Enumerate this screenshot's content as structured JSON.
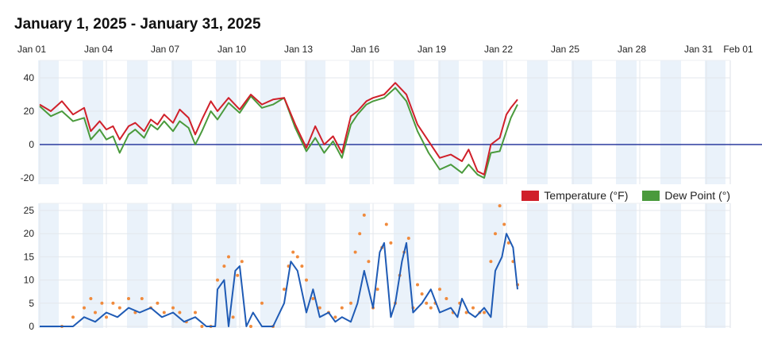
{
  "title": "January 1, 2025 - January 31, 2025",
  "x_ticks": [
    "Jan 01",
    "Jan 04",
    "Jan 07",
    "Jan 10",
    "Jan 13",
    "Jan 16",
    "Jan 19",
    "Jan 22",
    "Jan 25",
    "Jan 28",
    "Jan 31",
    "Feb 01"
  ],
  "colors": {
    "temperature": "#d0202a",
    "dew_point": "#4a9a3c",
    "zero_line": "#2b3a9e",
    "wind": "#1f5bb5",
    "gust": "#f08a3c",
    "band": "#eaf2fa"
  },
  "legend": [
    {
      "label": "Temperature (°F)",
      "color": "#d0202a"
    },
    {
      "label": "Dew Point (°)",
      "color": "#4a9a3c"
    }
  ],
  "chart_data": [
    {
      "type": "line",
      "x_range": [
        "Jan 01",
        "Feb 01"
      ],
      "ylim": [
        -23,
        50
      ],
      "y_ticks": [
        40,
        20,
        0,
        -20
      ],
      "reference_line": 0,
      "series": [
        {
          "name": "Temperature (°F)",
          "x": [
            1.0,
            1.5,
            2.0,
            2.5,
            3.0,
            3.3,
            3.7,
            4.0,
            4.3,
            4.6,
            5.0,
            5.3,
            5.7,
            6.0,
            6.3,
            6.6,
            7.0,
            7.3,
            7.7,
            8.0,
            8.3,
            8.7,
            9.0,
            9.5,
            10.0,
            10.5,
            11.0,
            11.5,
            12.0,
            12.5,
            13.0,
            13.4,
            13.8,
            14.2,
            14.6,
            15.0,
            15.3,
            15.7,
            16.0,
            16.5,
            17.0,
            17.5,
            18.0,
            18.5,
            19.0,
            19.5,
            20.0,
            20.3,
            20.7,
            21.0,
            21.3,
            21.7,
            22.0,
            22.2,
            22.5
          ],
          "values": [
            24,
            20,
            26,
            18,
            22,
            8,
            14,
            9,
            11,
            3,
            11,
            13,
            8,
            15,
            12,
            18,
            13,
            21,
            16,
            6,
            15,
            26,
            20,
            28,
            21,
            30,
            24,
            27,
            28,
            12,
            -2,
            11,
            0,
            5,
            -5,
            17,
            20,
            26,
            28,
            30,
            37,
            30,
            12,
            2,
            -8,
            -6,
            -10,
            -3,
            -16,
            -18,
            0,
            4,
            18,
            22,
            27
          ]
        },
        {
          "name": "Dew Point (°)",
          "x": [
            1.0,
            1.5,
            2.0,
            2.5,
            3.0,
            3.3,
            3.7,
            4.0,
            4.3,
            4.6,
            5.0,
            5.3,
            5.7,
            6.0,
            6.3,
            6.6,
            7.0,
            7.3,
            7.7,
            8.0,
            8.3,
            8.7,
            9.0,
            9.5,
            10.0,
            10.5,
            11.0,
            11.5,
            12.0,
            12.5,
            13.0,
            13.4,
            13.8,
            14.2,
            14.6,
            15.0,
            15.3,
            15.7,
            16.0,
            16.5,
            17.0,
            17.5,
            18.0,
            18.5,
            19.0,
            19.5,
            20.0,
            20.3,
            20.7,
            21.0,
            21.3,
            21.7,
            22.0,
            22.2,
            22.5
          ],
          "values": [
            23,
            17,
            20,
            14,
            16,
            3,
            9,
            3,
            5,
            -5,
            6,
            9,
            4,
            12,
            9,
            14,
            8,
            14,
            10,
            0,
            8,
            20,
            15,
            25,
            19,
            29,
            22,
            24,
            28,
            10,
            -4,
            4,
            -5,
            2,
            -8,
            12,
            18,
            24,
            26,
            28,
            34,
            26,
            8,
            -5,
            -15,
            -12,
            -17,
            -12,
            -18,
            -20,
            -5,
            -4,
            8,
            16,
            24
          ]
        }
      ]
    },
    {
      "type": "line",
      "x_range": [
        "Jan 01",
        "Feb 01"
      ],
      "ylim": [
        0,
        26
      ],
      "y_ticks": [
        25,
        20,
        15,
        10,
        5,
        0
      ],
      "series": [
        {
          "name": "",
          "style": "line",
          "x": [
            1.0,
            2.0,
            2.5,
            3.0,
            3.5,
            4.0,
            4.5,
            5.0,
            5.5,
            6.0,
            6.5,
            7.0,
            7.5,
            8.0,
            8.5,
            8.9,
            9.0,
            9.3,
            9.5,
            9.8,
            10.0,
            10.3,
            10.6,
            11.0,
            11.5,
            12.0,
            12.3,
            12.6,
            13.0,
            13.3,
            13.6,
            14.0,
            14.3,
            14.6,
            15.0,
            15.3,
            15.6,
            16.0,
            16.3,
            16.5,
            16.8,
            17.0,
            17.3,
            17.5,
            17.8,
            18.2,
            18.6,
            19.0,
            19.5,
            19.8,
            20.0,
            20.3,
            20.6,
            21.0,
            21.3,
            21.5,
            21.8,
            22.0,
            22.3,
            22.5
          ],
          "values": [
            0,
            0,
            0,
            2,
            1,
            3,
            2,
            4,
            3,
            4,
            2,
            3,
            1,
            2,
            0,
            0,
            8,
            10,
            0,
            12,
            13,
            0,
            3,
            0,
            0,
            5,
            14,
            12,
            3,
            8,
            2,
            3,
            1,
            2,
            1,
            5,
            12,
            4,
            16,
            18,
            2,
            5,
            14,
            18,
            3,
            5,
            8,
            3,
            4,
            2,
            6,
            3,
            2,
            4,
            2,
            12,
            15,
            20,
            17,
            8
          ]
        },
        {
          "name": "",
          "style": "dots",
          "x": [
            2.0,
            2.5,
            3.0,
            3.3,
            3.5,
            3.8,
            4.0,
            4.3,
            4.6,
            5.0,
            5.3,
            5.6,
            6.0,
            6.3,
            6.6,
            7.0,
            7.3,
            7.6,
            8.0,
            8.3,
            8.7,
            9.0,
            9.3,
            9.5,
            9.7,
            9.9,
            10.1,
            10.5,
            11.0,
            11.5,
            12.0,
            12.2,
            12.4,
            12.6,
            12.8,
            13.0,
            13.3,
            13.6,
            14.0,
            14.3,
            14.6,
            15.0,
            15.2,
            15.4,
            15.6,
            15.8,
            16.0,
            16.2,
            16.4,
            16.6,
            16.8,
            17.0,
            17.2,
            17.4,
            17.6,
            17.8,
            18.0,
            18.2,
            18.4,
            18.6,
            18.8,
            19.0,
            19.3,
            19.6,
            19.9,
            20.2,
            20.5,
            20.8,
            21.0,
            21.3,
            21.5,
            21.7,
            21.9,
            22.1,
            22.3,
            22.5
          ],
          "values": [
            0,
            2,
            4,
            6,
            3,
            5,
            2,
            5,
            4,
            6,
            3,
            6,
            4,
            5,
            3,
            4,
            3,
            1,
            3,
            0,
            0,
            10,
            13,
            15,
            2,
            11,
            14,
            0,
            5,
            0,
            8,
            13,
            16,
            15,
            13,
            10,
            6,
            4,
            3,
            2,
            4,
            5,
            16,
            20,
            24,
            14,
            4,
            8,
            17,
            22,
            18,
            5,
            11,
            16,
            19,
            4,
            9,
            7,
            5,
            4,
            5,
            8,
            6,
            3,
            5,
            3,
            4,
            3,
            3,
            14,
            20,
            26,
            22,
            18,
            14,
            9
          ]
        }
      ]
    }
  ]
}
